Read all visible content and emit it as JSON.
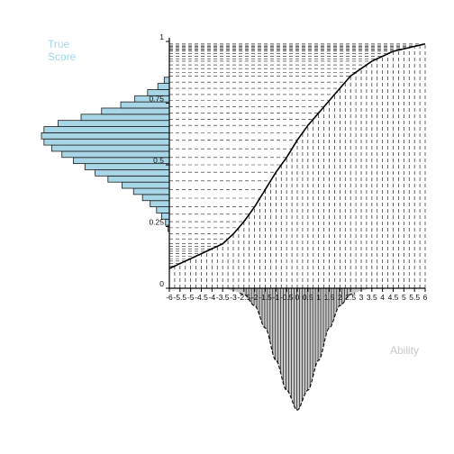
{
  "chart_data": {
    "type": "line",
    "ylabel": "True\nScore",
    "xlabel": "Ability",
    "xlim": [
      -6,
      6
    ],
    "ylim": [
      0,
      1
    ],
    "x_ticks": [
      "-6",
      "-5.5",
      "-5",
      "-4.5",
      "-4",
      "-3.5",
      "-3",
      "-2.5",
      "-2",
      "-1.5",
      "-1",
      "-0.5",
      "0",
      "0.5",
      "1",
      "1.5",
      "2",
      "2.5",
      "3",
      "3.5",
      "4",
      "4.5",
      "5",
      "5.5",
      "6"
    ],
    "y_ticks": [
      "0",
      "0.25",
      "0.5",
      "0.75",
      "1"
    ],
    "grid": false,
    "curve": {
      "x": [
        -6,
        -5.5,
        -5,
        -4.5,
        -4,
        -3.5,
        -3,
        -2.5,
        -2,
        -1.5,
        -1,
        -0.5,
        0,
        0.5,
        1,
        1.5,
        2,
        2.5,
        3,
        3.5,
        4,
        4.5,
        5,
        5.5,
        6
      ],
      "y": [
        0.08,
        0.1,
        0.12,
        0.14,
        0.16,
        0.18,
        0.22,
        0.27,
        0.33,
        0.4,
        0.47,
        0.53,
        0.6,
        0.66,
        0.71,
        0.76,
        0.81,
        0.86,
        0.89,
        0.92,
        0.94,
        0.96,
        0.97,
        0.98,
        0.99
      ]
    },
    "ability_distribution": {
      "x": [
        -6,
        -5.5,
        -5,
        -4.5,
        -4,
        -3.5,
        -3,
        -2.5,
        -2,
        -1.5,
        -1,
        -0.5,
        0,
        0.5,
        1,
        1.5,
        2,
        2.5,
        3,
        3.5,
        4,
        4.5,
        5,
        5.5,
        6
      ],
      "density": [
        0,
        0,
        0,
        0,
        0,
        0,
        0.02,
        0.05,
        0.14,
        0.32,
        0.58,
        0.82,
        0.98,
        0.82,
        0.58,
        0.32,
        0.14,
        0.05,
        0.02,
        0,
        0,
        0,
        0,
        0,
        0
      ]
    },
    "true_score_histogram": {
      "bins": [
        [
          0.23,
          0.255
        ],
        [
          0.255,
          0.28
        ],
        [
          0.28,
          0.305
        ],
        [
          0.305,
          0.33
        ],
        [
          0.33,
          0.355
        ],
        [
          0.355,
          0.38
        ],
        [
          0.38,
          0.405
        ],
        [
          0.405,
          0.43
        ],
        [
          0.43,
          0.455
        ],
        [
          0.455,
          0.48
        ],
        [
          0.48,
          0.505
        ],
        [
          0.505,
          0.53
        ],
        [
          0.53,
          0.555
        ],
        [
          0.555,
          0.58
        ],
        [
          0.58,
          0.605
        ],
        [
          0.605,
          0.63
        ],
        [
          0.63,
          0.655
        ],
        [
          0.655,
          0.68
        ],
        [
          0.68,
          0.705
        ],
        [
          0.705,
          0.73
        ],
        [
          0.73,
          0.755
        ],
        [
          0.755,
          0.78
        ],
        [
          0.78,
          0.805
        ],
        [
          0.805,
          0.83
        ],
        [
          0.83,
          0.855
        ]
      ],
      "counts": [
        0.01,
        0.03,
        0.06,
        0.1,
        0.15,
        0.21,
        0.28,
        0.37,
        0.48,
        0.58,
        0.66,
        0.75,
        0.84,
        0.92,
        0.98,
        1.0,
        0.98,
        0.87,
        0.69,
        0.53,
        0.38,
        0.27,
        0.17,
        0.09,
        0.04
      ]
    }
  }
}
